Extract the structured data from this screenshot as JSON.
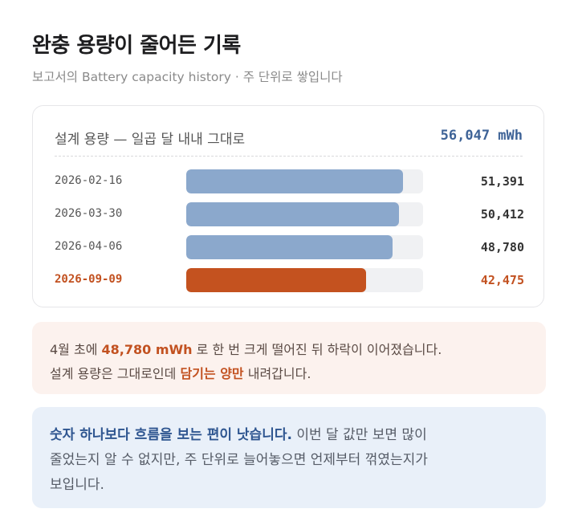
{
  "header": {
    "title": "완충 용량이 줄어든 기록",
    "subtitle": "보고서의 Battery capacity history · 주 단위로 쌓입니다"
  },
  "card": {
    "design_label": "설계 용량 — 일곱 달 내내 그대로",
    "design_value": "56,047 mWh",
    "design_capacity": 56047,
    "rows": [
      {
        "date": "2026-02-16",
        "value": "51,391",
        "capacity": 51391,
        "highlight": false
      },
      {
        "date": "2026-03-30",
        "value": "50,412",
        "capacity": 50412,
        "highlight": false
      },
      {
        "date": "2026-04-06",
        "value": "48,780",
        "capacity": 48780,
        "highlight": false
      },
      {
        "date": "2026-09-09",
        "value": "42,475",
        "capacity": 42475,
        "highlight": true
      }
    ]
  },
  "note_orange": {
    "t1": "4월 초에 ",
    "h1": "48,780 mWh",
    "t2": " 로 한 번 크게 떨어진 뒤 하락이 이어졌습니다.",
    "t3": "설계 용량은 그대로인데 ",
    "h2": "담기는 양만",
    "t4": " 내려갑니다."
  },
  "note_blue": {
    "lead": "숫자 하나보다 흐름을 보는 편이 낫습니다.",
    "t1": " 이번 달 값만 보면 많이",
    "t2": "줄었는지 알 수 없지만, 주 단위로 늘어놓으면 언제부터 꺾였는지가",
    "t3": "보입니다."
  },
  "colors": {
    "bar": "#8ba8cc",
    "bar_highlight": "#c4521f",
    "track": "#f0f1f3",
    "accent_blue": "#3e6397",
    "accent_orange": "#c25120"
  }
}
